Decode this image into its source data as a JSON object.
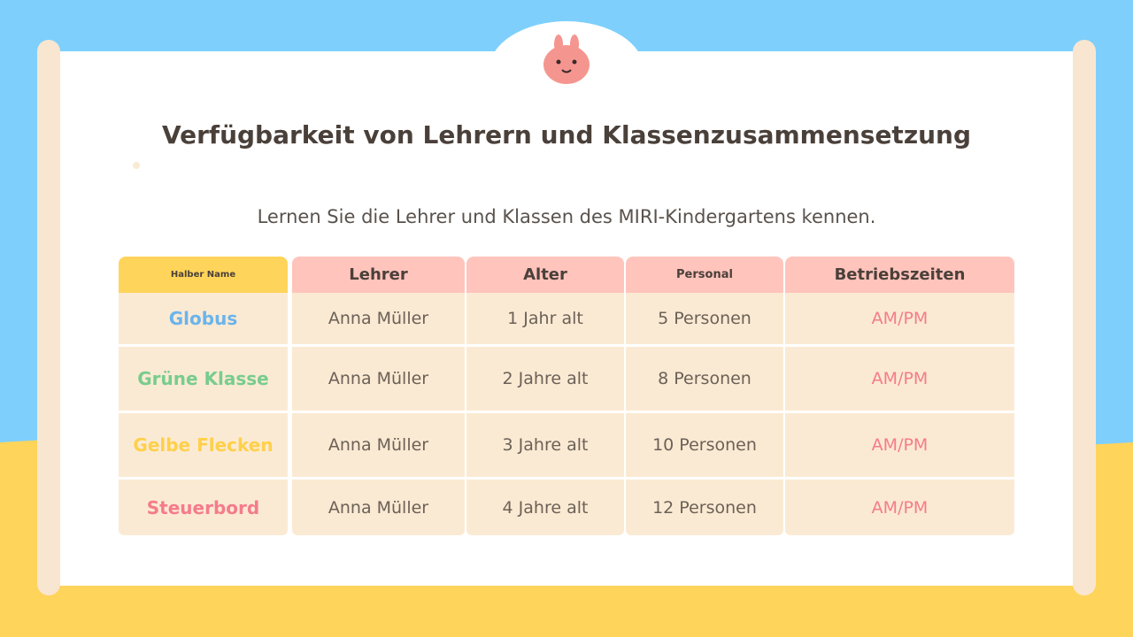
{
  "title": "Verfügbarkeit von Lehrern und Klassenzusammensetzung",
  "subtitle": "Lernen Sie die Lehrer und Klassen des MIRI-Kindergartens kennen.",
  "table": {
    "header": [
      "Halber Name",
      "Lehrer",
      "Alter",
      "Personal",
      "Betriebszeiten"
    ],
    "rows": [
      [
        "Globus",
        "Anna Müller",
        "1 Jahr alt",
        "5 Personen",
        "AM/PM"
      ],
      [
        "Grüne Klasse",
        "Anna Müller",
        "2 Jahre alt",
        "8 Personen",
        "AM/PM"
      ],
      [
        "Gelbe Flecken",
        "Anna Müller",
        "3 Jahre alt",
        "10 Personen",
        "AM/PM"
      ],
      [
        "Steuerbord",
        "Anna Müller",
        "4 Jahre alt",
        "12 Personen",
        "AM/PM"
      ]
    ]
  }
}
